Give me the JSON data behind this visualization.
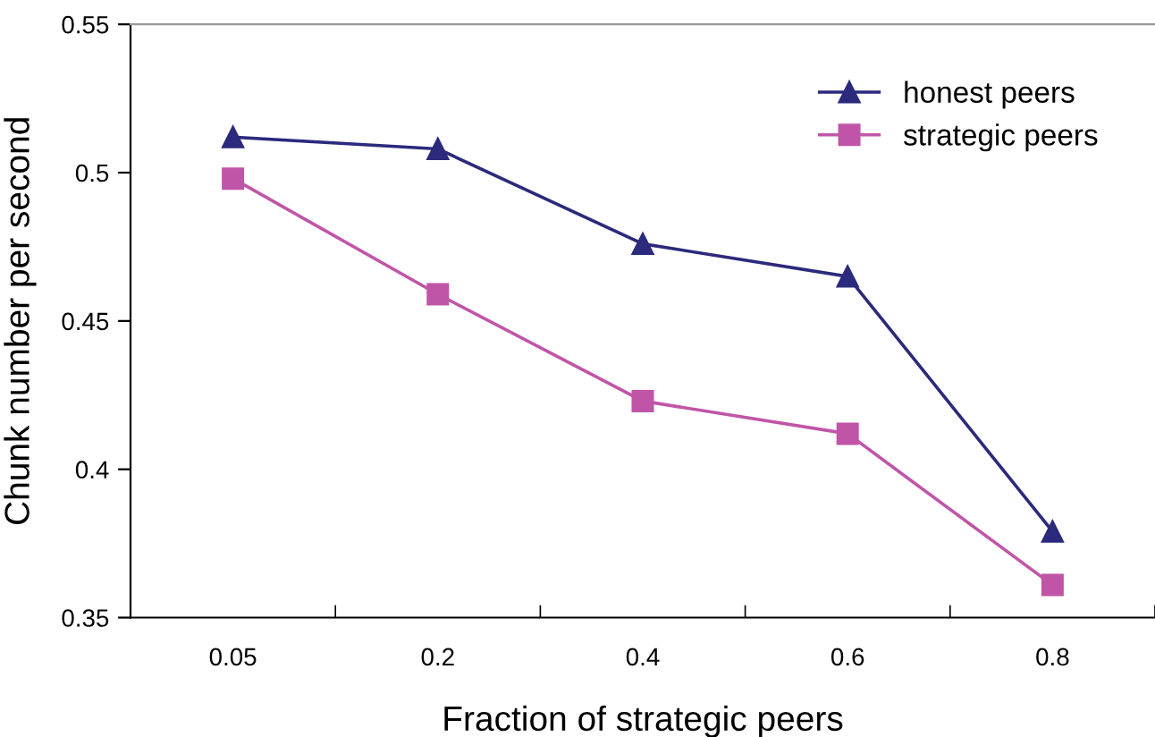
{
  "chart_data": {
    "type": "line",
    "xlabel": "Fraction of strategic peers",
    "ylabel": "Chunk number per second",
    "categories": [
      "0.05",
      "0.2",
      "0.4",
      "0.6",
      "0.8"
    ],
    "series": [
      {
        "name": "honest peers",
        "color": "#2b2a7c",
        "marker": "triangle",
        "values": [
          0.512,
          0.508,
          0.476,
          0.465,
          0.379
        ]
      },
      {
        "name": "strategic peers",
        "color": "#c055a8",
        "marker": "square",
        "values": [
          0.498,
          0.459,
          0.423,
          0.412,
          0.361
        ]
      }
    ],
    "ylim": [
      0.35,
      0.55
    ],
    "yticks": [
      0.35,
      0.4,
      0.45,
      0.5,
      0.55
    ],
    "grid": false,
    "legend": "top right",
    "line_style": "solid"
  }
}
